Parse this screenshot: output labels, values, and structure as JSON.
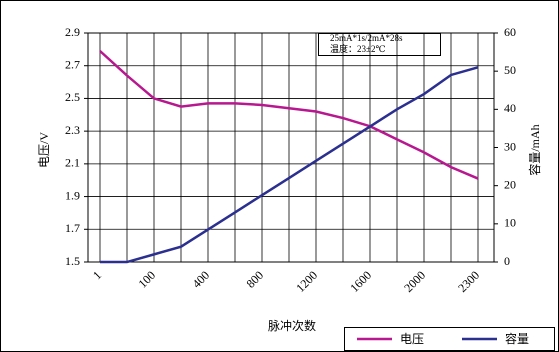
{
  "chart_data": {
    "type": "line",
    "x_label": "脉冲次数",
    "y_label": "电压/V",
    "y2_label": "容量/mAh",
    "annotations": [
      "25mA*1s/2mA*28s",
      "温度：23±2℃"
    ],
    "categories": [
      "1",
      null,
      "100",
      null,
      "400",
      null,
      "800",
      null,
      "1200",
      null,
      "1600",
      null,
      "2000",
      null,
      "2300"
    ],
    "series": [
      {
        "name": "电压",
        "color": "#b8188f",
        "values": [
          2.79,
          2.64,
          2.5,
          2.45,
          2.47,
          2.47,
          2.46,
          2.44,
          2.42,
          2.38,
          2.33,
          2.25,
          2.17,
          2.08,
          2.01
        ]
      },
      {
        "name": "容量",
        "color": "#2b2f8f",
        "axis": "y2",
        "values": [
          0,
          0,
          2,
          4,
          8.5,
          13,
          17.5,
          22,
          26.5,
          31,
          35.5,
          40,
          44,
          49,
          51
        ]
      }
    ],
    "ylim": [
      1.5,
      2.9
    ],
    "yticks": [
      1.5,
      1.7,
      1.9,
      2.1,
      2.3,
      2.5,
      2.7,
      2.9
    ],
    "y2lim": [
      0,
      60
    ],
    "y2ticks": [
      0,
      10,
      20,
      30,
      40,
      50,
      60
    ],
    "grid": true
  }
}
